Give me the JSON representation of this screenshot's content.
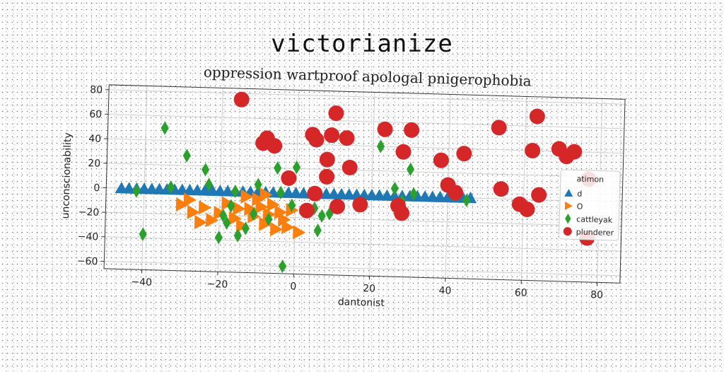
{
  "header": {
    "title": "victorianize"
  },
  "chart_data": {
    "type": "scatter",
    "title": "oppression wartproof apologal pnigerophobia",
    "xlabel": "dantonist",
    "ylabel": "unconscionability",
    "xlim": [
      -50,
      86
    ],
    "ylim": [
      -66,
      84
    ],
    "xticks": [
      -40,
      -20,
      0,
      20,
      40,
      60,
      80
    ],
    "yticks": [
      -60,
      -40,
      -20,
      0,
      20,
      40,
      60,
      80
    ],
    "grid": true,
    "legend": {
      "title": "atimon",
      "position": "right"
    },
    "series": [
      {
        "name": "d",
        "marker": "triangle-up",
        "color": "#1f77b4",
        "points": [
          [
            -46,
            0
          ],
          [
            -44,
            0
          ],
          [
            -42,
            0
          ],
          [
            -40,
            0
          ],
          [
            -38,
            0
          ],
          [
            -36,
            0
          ],
          [
            -34,
            0
          ],
          [
            -32,
            0
          ],
          [
            -30,
            0
          ],
          [
            -28,
            0
          ],
          [
            -26,
            0
          ],
          [
            -24,
            0
          ],
          [
            -22,
            0
          ],
          [
            -20,
            0
          ],
          [
            -18,
            0
          ],
          [
            -16,
            0
          ],
          [
            -14,
            0
          ],
          [
            -12,
            0
          ],
          [
            -10,
            0
          ],
          [
            -8,
            0
          ],
          [
            -6,
            0
          ],
          [
            -4,
            0
          ],
          [
            -2,
            0
          ],
          [
            0,
            0
          ],
          [
            2,
            0
          ],
          [
            4,
            0
          ],
          [
            6,
            0
          ],
          [
            8,
            0
          ],
          [
            10,
            0
          ],
          [
            12,
            0
          ],
          [
            14,
            0
          ],
          [
            16,
            0
          ],
          [
            18,
            0
          ],
          [
            20,
            0
          ],
          [
            22,
            0
          ],
          [
            24,
            0
          ],
          [
            26,
            0
          ],
          [
            28,
            0
          ],
          [
            30,
            0
          ],
          [
            32,
            0
          ],
          [
            34,
            0
          ],
          [
            36,
            0
          ],
          [
            38,
            0
          ],
          [
            40,
            0
          ],
          [
            42,
            0
          ],
          [
            44,
            0
          ],
          [
            46,
            0
          ]
        ]
      },
      {
        "name": "O",
        "marker": "triangle-right",
        "color": "#ff7f0e",
        "points": [
          [
            -30,
            -12
          ],
          [
            -28,
            -8
          ],
          [
            -27,
            -18
          ],
          [
            -25,
            -26
          ],
          [
            -24,
            -14
          ],
          [
            -22,
            -24
          ],
          [
            -20,
            -18
          ],
          [
            -18,
            -10
          ],
          [
            -16,
            -22
          ],
          [
            -14,
            -28
          ],
          [
            -13,
            -4
          ],
          [
            -12,
            -14
          ],
          [
            -11,
            -20
          ],
          [
            -10,
            -6
          ],
          [
            -9,
            -12
          ],
          [
            -8,
            -26
          ],
          [
            -7,
            -18
          ],
          [
            -6,
            -10
          ],
          [
            -5,
            -30
          ],
          [
            -4,
            -16
          ],
          [
            -3,
            -22
          ],
          [
            -2,
            -28
          ],
          [
            -1,
            -14
          ],
          [
            1,
            -32
          ],
          [
            -15,
            -14
          ],
          [
            -8,
            -2
          ]
        ]
      },
      {
        "name": "cattleyak",
        "marker": "diamond",
        "color": "#2ca02c",
        "points": [
          [
            -42,
            -2
          ],
          [
            -40,
            -37
          ],
          [
            -35,
            50
          ],
          [
            -33,
            2
          ],
          [
            -29,
            28
          ],
          [
            -24,
            17
          ],
          [
            -23,
            5
          ],
          [
            -20,
            -38
          ],
          [
            -19,
            -20
          ],
          [
            -18,
            -26
          ],
          [
            -17,
            -12
          ],
          [
            -16,
            0
          ],
          [
            -15,
            -36
          ],
          [
            -13,
            -30
          ],
          [
            -11,
            -18
          ],
          [
            -10,
            6
          ],
          [
            -7,
            -22
          ],
          [
            -5,
            20
          ],
          [
            -4,
            0
          ],
          [
            -3,
            -60
          ],
          [
            -1,
            -10
          ],
          [
            0,
            21
          ],
          [
            5,
            -12
          ],
          [
            6,
            -30
          ],
          [
            7,
            -18
          ],
          [
            9,
            -16
          ],
          [
            22,
            40
          ],
          [
            26,
            6
          ],
          [
            28,
            -4
          ],
          [
            30,
            22
          ],
          [
            31,
            2
          ],
          [
            45,
            -2
          ]
        ]
      },
      {
        "name": "plunderer",
        "marker": "circle",
        "color": "#d62728",
        "points": [
          [
            -15,
            75
          ],
          [
            -9,
            40
          ],
          [
            -8,
            44
          ],
          [
            -6,
            38
          ],
          [
            -2,
            12
          ],
          [
            3,
            -14
          ],
          [
            4,
            48
          ],
          [
            5,
            0
          ],
          [
            5,
            44
          ],
          [
            8,
            14
          ],
          [
            8,
            28
          ],
          [
            9,
            48
          ],
          [
            10,
            66
          ],
          [
            11,
            -10
          ],
          [
            13,
            46
          ],
          [
            14,
            22
          ],
          [
            17,
            -8
          ],
          [
            23,
            54
          ],
          [
            27,
            -8
          ],
          [
            28,
            -14
          ],
          [
            28,
            36
          ],
          [
            30,
            54
          ],
          [
            38,
            30
          ],
          [
            40,
            10
          ],
          [
            42,
            4
          ],
          [
            44,
            36
          ],
          [
            53,
            58
          ],
          [
            54,
            8
          ],
          [
            59,
            -4
          ],
          [
            61,
            -8
          ],
          [
            62,
            40
          ],
          [
            63,
            68
          ],
          [
            64,
            4
          ],
          [
            69,
            42
          ],
          [
            71,
            36
          ],
          [
            73,
            40
          ],
          [
            77,
            18
          ],
          [
            77,
            -30
          ]
        ]
      }
    ]
  }
}
